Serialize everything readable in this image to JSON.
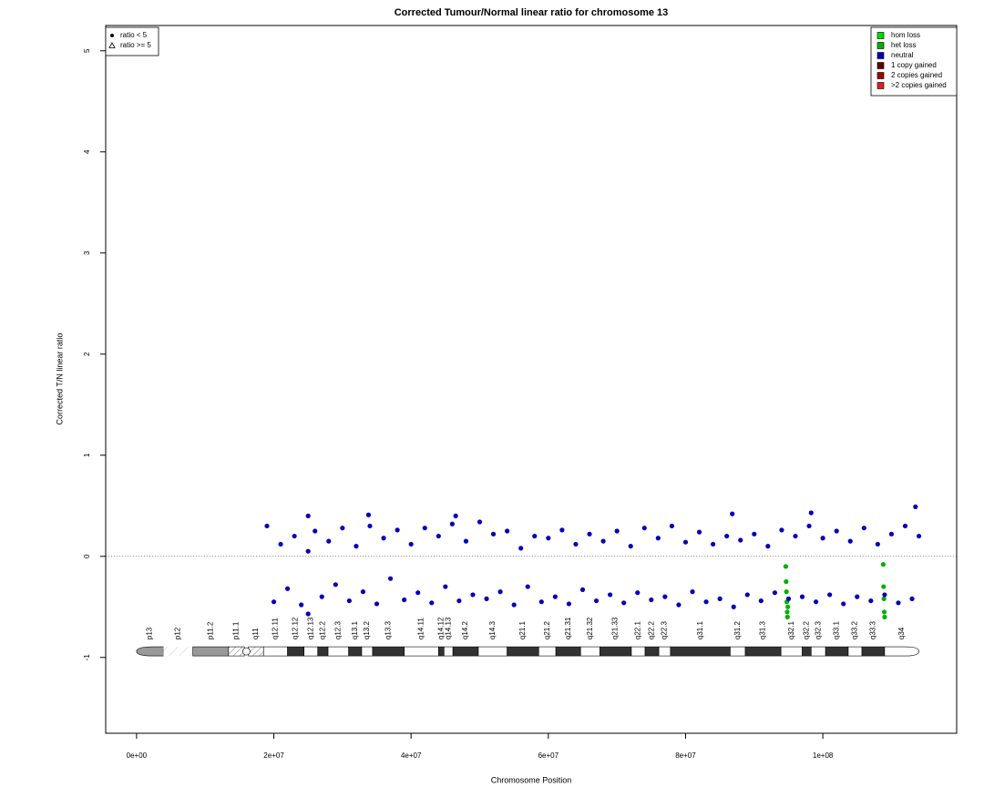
{
  "chart_data": {
    "type": "scatter",
    "title": "Corrected Tumour/Normal linear ratio for chromosome  13",
    "x_label": "Chromosome Position",
    "y_label": "Corrected T/N linear ratio",
    "xlim": [
      -4500000.0,
      119500000.0
    ],
    "ylim": [
      -1.75,
      5.25
    ],
    "xticks": [
      {
        "value": 0,
        "label": "0e+00"
      },
      {
        "value": 20000000.0,
        "label": "2e+07"
      },
      {
        "value": 40000000.0,
        "label": "4e+07"
      },
      {
        "value": 60000000.0,
        "label": "6e+07"
      },
      {
        "value": 80000000.0,
        "label": "8e+07"
      },
      {
        "value": 100000000.0,
        "label": "1e+08"
      }
    ],
    "yticks": [
      -1,
      0,
      1,
      2,
      3,
      4,
      5
    ],
    "reference_line": 0,
    "legend": "topright",
    "shape_legend_position": "topleft",
    "shape_legend": [
      {
        "label": "ratio < 5",
        "shape": "circle"
      },
      {
        "label": "ratio >= 5",
        "shape": "triangle"
      }
    ],
    "series": [
      {
        "name": "hom loss",
        "color": "#00dd00",
        "x": [],
        "values": []
      },
      {
        "name": "het loss",
        "color": "#00b000",
        "x": [
          94600000.0,
          94650000.0,
          94700000.0,
          94750000.0,
          94800000.0,
          94850000.0,
          94900000.0,
          108800000.0,
          108850000.0,
          108900000.0,
          108950000.0,
          109000000.0
        ],
        "values": [
          -0.1,
          -0.25,
          -0.35,
          -0.45,
          -0.55,
          -0.6,
          -0.5,
          -0.08,
          -0.3,
          -0.42,
          -0.55,
          -0.6
        ]
      },
      {
        "name": "neutral",
        "color": "#0000b8",
        "x": [
          19000000.0,
          20000000.0,
          21000000.0,
          22000000.0,
          23000000.0,
          24000000.0,
          25000000.0,
          26000000.0,
          27000000.0,
          28000000.0,
          29000000.0,
          30000000.0,
          31000000.0,
          32000000.0,
          33000000.0,
          34000000.0,
          35000000.0,
          36000000.0,
          37000000.0,
          38000000.0,
          39000000.0,
          40000000.0,
          41000000.0,
          42000000.0,
          43000000.0,
          44000000.0,
          45000000.0,
          46000000.0,
          47000000.0,
          48000000.0,
          49000000.0,
          50000000.0,
          51000000.0,
          52000000.0,
          53000000.0,
          54000000.0,
          55000000.0,
          56000000.0,
          57000000.0,
          58000000.0,
          59000000.0,
          60000000.0,
          61000000.0,
          62000000.0,
          63000000.0,
          64000000.0,
          65000000.0,
          66000000.0,
          67000000.0,
          68000000.0,
          69000000.0,
          70000000.0,
          71000000.0,
          72000000.0,
          73000000.0,
          74000000.0,
          75000000.0,
          76000000.0,
          77000000.0,
          78000000.0,
          79000000.0,
          80000000.0,
          81000000.0,
          82000000.0,
          83000000.0,
          84000000.0,
          85000000.0,
          86000000.0,
          87000000.0,
          88000000.0,
          89000000.0,
          90000000.0,
          91000000.0,
          92000000.0,
          93000000.0,
          94000000.0,
          95000000.0,
          96000000.0,
          97000000.0,
          98000000.0,
          99000000.0,
          100000000.0,
          101000000.0,
          102000000.0,
          103000000.0,
          104000000.0,
          105000000.0,
          106000000.0,
          107000000.0,
          108000000.0,
          109000000.0,
          110000000.0,
          111000000.0,
          112000000.0,
          113000000.0,
          114000000.0,
          25000000.0,
          33800000.0,
          46500000.0,
          86800000.0,
          98300000.0,
          113500000.0,
          25000000.0
        ],
        "values": [
          0.3,
          -0.45,
          0.12,
          -0.32,
          0.2,
          -0.48,
          0.05,
          0.25,
          -0.4,
          0.15,
          -0.28,
          0.28,
          -0.44,
          0.1,
          -0.35,
          0.3,
          -0.47,
          0.18,
          -0.22,
          0.26,
          -0.43,
          0.12,
          -0.36,
          0.28,
          -0.46,
          0.2,
          -0.3,
          0.32,
          -0.44,
          0.15,
          -0.38,
          0.34,
          -0.42,
          0.22,
          -0.35,
          0.25,
          -0.48,
          0.08,
          -0.3,
          0.2,
          -0.45,
          0.18,
          -0.4,
          0.26,
          -0.47,
          0.12,
          -0.33,
          0.22,
          -0.44,
          0.15,
          -0.38,
          0.25,
          -0.46,
          0.1,
          -0.36,
          0.28,
          -0.43,
          0.18,
          -0.4,
          0.3,
          -0.48,
          0.14,
          -0.35,
          0.24,
          -0.45,
          0.12,
          -0.42,
          0.2,
          -0.5,
          0.16,
          -0.38,
          0.22,
          -0.44,
          0.1,
          -0.36,
          0.26,
          -0.42,
          0.2,
          -0.4,
          0.3,
          -0.45,
          0.18,
          -0.38,
          0.25,
          -0.47,
          0.15,
          -0.4,
          0.28,
          -0.44,
          0.12,
          -0.38,
          0.22,
          -0.46,
          0.3,
          -0.42,
          0.2,
          0.4,
          0.41,
          0.4,
          0.42,
          0.43,
          0.49,
          -0.57
        ]
      },
      {
        "name": "1 copy gained",
        "color": "#600000",
        "x": [],
        "values": []
      },
      {
        "name": "2 copies gained",
        "color": "#a00000",
        "x": [],
        "values": []
      },
      {
        "name": ">2 copies gained",
        "color": "#e02020",
        "x": [],
        "values": []
      }
    ],
    "ideogram_y": -0.94,
    "ideogram": [
      {
        "name": "p13",
        "start": 0,
        "end": 3900000.0,
        "stain": "gvar"
      },
      {
        "name": "p12",
        "start": 3900000.0,
        "end": 8200000.0,
        "stain": "stalk"
      },
      {
        "name": "p11.2",
        "start": 8200000.0,
        "end": 13400000.0,
        "stain": "gvar"
      },
      {
        "name": "p11.1",
        "start": 13400000.0,
        "end": 15700000.0,
        "stain": "acen"
      },
      {
        "name": "q11",
        "start": 16300000.0,
        "end": 18500000.0,
        "stain": "acen"
      },
      {
        "name": "q12.11",
        "start": 18500000.0,
        "end": 22000000.0,
        "stain": "gneg"
      },
      {
        "name": "q12.12",
        "start": 22000000.0,
        "end": 24400000.0,
        "stain": "gpos"
      },
      {
        "name": "q12.13",
        "start": 24400000.0,
        "end": 26400000.0,
        "stain": "gneg"
      },
      {
        "name": "q12.2",
        "start": 26400000.0,
        "end": 27900000.0,
        "stain": "gpos"
      },
      {
        "name": "q12.3",
        "start": 27900000.0,
        "end": 30900000.0,
        "stain": "gneg"
      },
      {
        "name": "q13.1",
        "start": 30900000.0,
        "end": 32800000.0,
        "stain": "gpos"
      },
      {
        "name": "q13.2",
        "start": 32800000.0,
        "end": 34400000.0,
        "stain": "gneg"
      },
      {
        "name": "q13.3",
        "start": 34400000.0,
        "end": 39000000.0,
        "stain": "gpos"
      },
      {
        "name": "q14.11",
        "start": 39000000.0,
        "end": 44000000.0,
        "stain": "gneg"
      },
      {
        "name": "q14.12",
        "start": 44000000.0,
        "end": 44800000.0,
        "stain": "gpos"
      },
      {
        "name": "q14.13",
        "start": 44800000.0,
        "end": 46100000.0,
        "stain": "gneg"
      },
      {
        "name": "q14.2",
        "start": 46100000.0,
        "end": 49800000.0,
        "stain": "gpos"
      },
      {
        "name": "q14.3",
        "start": 49800000.0,
        "end": 54000000.0,
        "stain": "gneg"
      },
      {
        "name": "q21.1",
        "start": 54000000.0,
        "end": 58600000.0,
        "stain": "gpos"
      },
      {
        "name": "q21.2",
        "start": 58600000.0,
        "end": 61100000.0,
        "stain": "gneg"
      },
      {
        "name": "q21.31",
        "start": 61100000.0,
        "end": 64700000.0,
        "stain": "gpos"
      },
      {
        "name": "q21.32",
        "start": 64700000.0,
        "end": 67500000.0,
        "stain": "gneg"
      },
      {
        "name": "q21.33",
        "start": 67500000.0,
        "end": 72100000.0,
        "stain": "gpos"
      },
      {
        "name": "q22.1",
        "start": 72100000.0,
        "end": 74100000.0,
        "stain": "gneg"
      },
      {
        "name": "q22.2",
        "start": 74100000.0,
        "end": 76100000.0,
        "stain": "gpos"
      },
      {
        "name": "q22.3",
        "start": 76100000.0,
        "end": 77800000.0,
        "stain": "gneg"
      },
      {
        "name": "q31.1",
        "start": 77800000.0,
        "end": 86500000.0,
        "stain": "gpos"
      },
      {
        "name": "q31.2",
        "start": 86500000.0,
        "end": 88700000.0,
        "stain": "gneg"
      },
      {
        "name": "q31.3",
        "start": 88700000.0,
        "end": 93900000.0,
        "stain": "gpos"
      },
      {
        "name": "q32.1",
        "start": 93900000.0,
        "end": 97000000.0,
        "stain": "gneg"
      },
      {
        "name": "q32.2",
        "start": 97000000.0,
        "end": 98300000.0,
        "stain": "gpos"
      },
      {
        "name": "q32.3",
        "start": 98300000.0,
        "end": 100400000.0,
        "stain": "gneg"
      },
      {
        "name": "q33.1",
        "start": 100400000.0,
        "end": 103700000.0,
        "stain": "gpos"
      },
      {
        "name": "q33.2",
        "start": 103700000.0,
        "end": 105700000.0,
        "stain": "gneg"
      },
      {
        "name": "q33.3",
        "start": 105700000.0,
        "end": 109000000.0,
        "stain": "gpos"
      },
      {
        "name": "q34",
        "start": 109000000.0,
        "end": 114000000.0,
        "stain": "gneg"
      }
    ]
  }
}
